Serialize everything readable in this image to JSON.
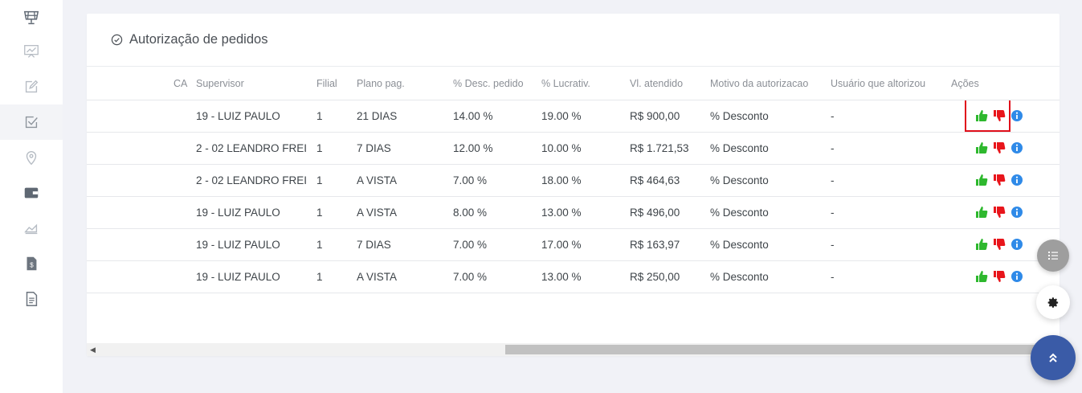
{
  "page": {
    "title": "Autorização de pedidos"
  },
  "sidebar": {
    "items": [
      {
        "icon": "solar-panel-icon"
      },
      {
        "icon": "presentation-chart-icon"
      },
      {
        "icon": "edit-icon"
      },
      {
        "icon": "checkbox-icon",
        "active": true
      },
      {
        "icon": "map-pin-icon"
      },
      {
        "icon": "wallet-icon"
      },
      {
        "icon": "area-chart-icon"
      },
      {
        "icon": "invoice-dollar-icon"
      },
      {
        "icon": "document-icon"
      }
    ]
  },
  "table": {
    "columns": {
      "a": "CA",
      "supervisor": "Supervisor",
      "filial": "Filial",
      "plano": "Plano pag.",
      "desc": "% Desc. pedido",
      "lucrativ": "% Lucrativ.",
      "vl": "Vl. atendido",
      "motivo": "Motivo da autorizacao",
      "usuario": "Usuário que altorizou",
      "acoes": "Ações"
    },
    "rows": [
      {
        "supervisor": "19 - LUIZ PAULO",
        "filial": "1",
        "plano": "21 DIAS",
        "desc": "14.00 %",
        "lucrativ": "19.00 %",
        "vl": "R$ 900,00",
        "motivo": "% Desconto",
        "usuario": "-"
      },
      {
        "supervisor": "2 - 02 LEANDRO FREI",
        "filial": "1",
        "plano": "7 DIAS",
        "desc": "12.00 %",
        "lucrativ": "10.00 %",
        "vl": "R$ 1.721,53",
        "motivo": "% Desconto",
        "usuario": "-"
      },
      {
        "supervisor": "2 - 02 LEANDRO FREI",
        "filial": "1",
        "plano": "A VISTA",
        "desc": "7.00 %",
        "lucrativ": "18.00 %",
        "vl": "R$ 464,63",
        "motivo": "% Desconto",
        "usuario": "-"
      },
      {
        "supervisor": "19 - LUIZ PAULO",
        "filial": "1",
        "plano": "A VISTA",
        "desc": "8.00 %",
        "lucrativ": "13.00 %",
        "vl": "R$ 496,00",
        "motivo": "% Desconto",
        "usuario": "-"
      },
      {
        "supervisor": "19 - LUIZ PAULO",
        "filial": "1",
        "plano": "7 DIAS",
        "desc": "7.00 %",
        "lucrativ": "17.00 %",
        "vl": "R$ 163,97",
        "motivo": "% Desconto",
        "usuario": "-"
      },
      {
        "supervisor": "19 - LUIZ PAULO",
        "filial": "1",
        "plano": "A VISTA",
        "desc": "7.00 %",
        "lucrativ": "13.00 %",
        "vl": "R$ 250,00",
        "motivo": "% Desconto",
        "usuario": "-"
      }
    ]
  },
  "colors": {
    "approve": "#2eb82e",
    "reject": "#e8151b",
    "info": "#2f8ae8",
    "highlight": "#e0101b",
    "fab_up": "#3a5ba7"
  },
  "fabs": {
    "list": "list-icon",
    "settings": "gear-icon",
    "scroll_top": "double-chevron-up-icon"
  }
}
